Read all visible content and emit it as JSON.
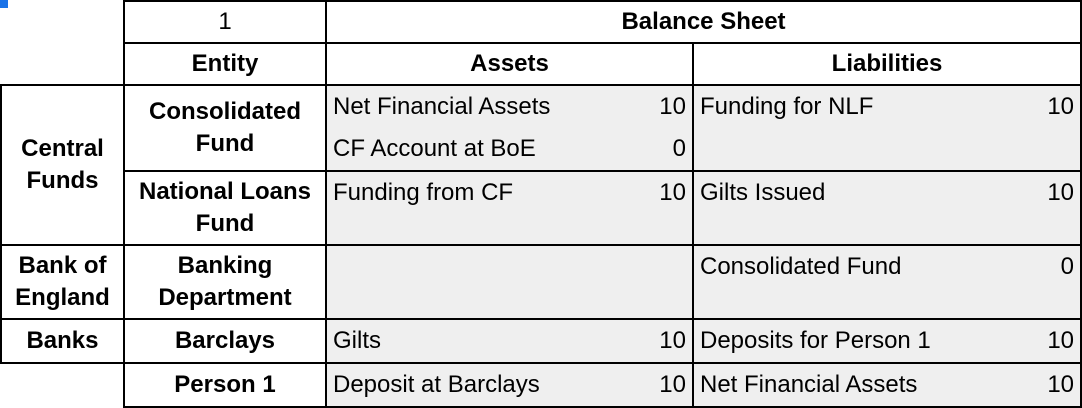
{
  "header": {
    "number": "1",
    "title": "Balance Sheet",
    "col_entity": "Entity",
    "col_assets": "Assets",
    "col_liabilities": "Liabilities"
  },
  "groups": {
    "central_funds": "Central Funds",
    "bank_of_england": "Bank of England",
    "banks": "Banks"
  },
  "rows": {
    "consolidated_fund": {
      "entity": "Consolidated Fund",
      "assets": [
        {
          "label": "Net Financial Assets",
          "value": "10"
        },
        {
          "label": "CF Account at BoE",
          "value": "0"
        }
      ],
      "liabilities": [
        {
          "label": "Funding for NLF",
          "value": "10"
        }
      ]
    },
    "national_loans_fund": {
      "entity": "National Loans Fund",
      "assets": [
        {
          "label": "Funding from CF",
          "value": "10"
        }
      ],
      "liabilities": [
        {
          "label": "Gilts Issued",
          "value": "10"
        }
      ]
    },
    "banking_department": {
      "entity": "Banking Department",
      "liabilities": [
        {
          "label": "Consolidated Fund",
          "value": "0"
        }
      ]
    },
    "barclays": {
      "entity": "Barclays",
      "assets": [
        {
          "label": "Gilts",
          "value": "10"
        }
      ],
      "liabilities": [
        {
          "label": "Deposits for Person 1",
          "value": "10"
        }
      ]
    },
    "person_1": {
      "entity": "Person 1",
      "assets": [
        {
          "label": "Deposit at Barclays",
          "value": "10"
        }
      ],
      "liabilities": [
        {
          "label": "Net Financial Assets",
          "value": "10"
        }
      ]
    }
  }
}
